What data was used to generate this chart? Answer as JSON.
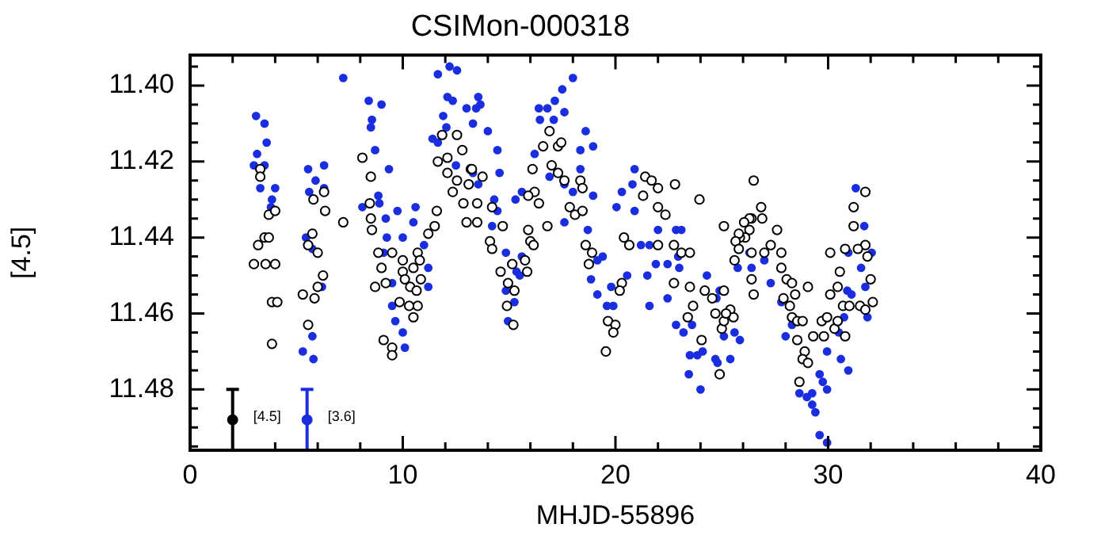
{
  "chart_data": {
    "type": "scatter",
    "title": "CSIMon-000318",
    "xlabel": "MHJD-55896",
    "ylabel": "[4.5]",
    "xlim": [
      0,
      40
    ],
    "xticks": [
      0,
      {
        "value": 2,
        "label": null
      },
      {
        "value": 4,
        "label": null
      },
      {
        "value": 6,
        "label": null
      },
      {
        "value": 8,
        "label": null
      },
      10,
      {
        "value": 12,
        "label": null
      },
      {
        "value": 14,
        "label": null
      },
      {
        "value": 16,
        "label": null
      },
      {
        "value": 18,
        "label": null
      },
      20,
      {
        "value": 22,
        "label": null
      },
      {
        "value": 24,
        "label": null
      },
      {
        "value": 26,
        "label": null
      },
      {
        "value": 28,
        "label": null
      },
      30,
      {
        "value": 32,
        "label": null
      },
      {
        "value": 34,
        "label": null
      },
      {
        "value": 36,
        "label": null
      },
      {
        "value": 38,
        "label": null
      },
      40
    ],
    "ylim": [
      11.496,
      11.392
    ],
    "yticks": [
      {
        "value": 11.395,
        "label": null
      },
      {
        "value": 11.4,
        "label": "11.40"
      },
      {
        "value": 11.405,
        "label": null
      },
      {
        "value": 11.41,
        "label": null
      },
      {
        "value": 11.415,
        "label": null
      },
      {
        "value": 11.42,
        "label": "11.42"
      },
      {
        "value": 11.425,
        "label": null
      },
      {
        "value": 11.43,
        "label": null
      },
      {
        "value": 11.435,
        "label": null
      },
      {
        "value": 11.44,
        "label": "11.44"
      },
      {
        "value": 11.445,
        "label": null
      },
      {
        "value": 11.45,
        "label": null
      },
      {
        "value": 11.455,
        "label": null
      },
      {
        "value": 11.46,
        "label": "11.46"
      },
      {
        "value": 11.465,
        "label": null
      },
      {
        "value": 11.47,
        "label": null
      },
      {
        "value": 11.475,
        "label": null
      },
      {
        "value": 11.48,
        "label": "11.48"
      },
      {
        "value": 11.485,
        "label": null
      },
      {
        "value": 11.49,
        "label": null
      },
      {
        "value": 11.495,
        "label": null
      }
    ],
    "grid": false,
    "legend": false,
    "marker": "circle",
    "series": [
      {
        "color": "#000000",
        "x": [
          3.3,
          3.3,
          3.7,
          4.0,
          3.2,
          3.5,
          3.7,
          3.0,
          3.55,
          4.0,
          3.85,
          4.1,
          3.85,
          5.8,
          6.3,
          6.35,
          5.75,
          5.55,
          6.0,
          6.25,
          6.0,
          5.3,
          5.85,
          5.55,
          7.2,
          8.1,
          8.5,
          8.45,
          8.5,
          8.55,
          8.85,
          9.0,
          9.5,
          10.0,
          10.5,
          10.7,
          10.8,
          11.2,
          11.5,
          11.6,
          8.7,
          9.2,
          10.0,
          10.1,
          10.35,
          10.65,
          10.85,
          10.7,
          10.3,
          9.85,
          10.5,
          9.5,
          9.1,
          9.5,
          11.85,
          12.55,
          12.8,
          12.1,
          11.65,
          12.1,
          12.55,
          13.2,
          12.35,
          12.85,
          13.0,
          16.9,
          16.6,
          17.3,
          17.45,
          16.1,
          17.0,
          17.3,
          17.6,
          18.35,
          18.45,
          16.2,
          15.9,
          16.4,
          17.85,
          18.1,
          18.45,
          16.8,
          15.9,
          16.0,
          16.15,
          13.25,
          13.75,
          13.1,
          13.5,
          13.5,
          14.2,
          14.7,
          14.1,
          14.2,
          15.15,
          15.75,
          14.6,
          15.85,
          14.95,
          14.9,
          15.25,
          15.2,
          18.6,
          18.9,
          18.75,
          20.4,
          20.65,
          20.3,
          20.2,
          19.65,
          20.0,
          19.9,
          19.55,
          21.4,
          21.7,
          22.0,
          21.3,
          22.0,
          22.35,
          22.8,
          23.95,
          22.0,
          22.75,
          23.1,
          23.5,
          22.75,
          23.5,
          24.2,
          24.55,
          24.7,
          25.4,
          25.55,
          23.65,
          23.4,
          24.05,
          24.9,
          25.0,
          26.3,
          26.4,
          26.1,
          25.85,
          25.6,
          25.1,
          26.5,
          26.85,
          26.9,
          26.3,
          26.05,
          25.8,
          25.65,
          25.8,
          26.4,
          27.0,
          27.3,
          27.6,
          27.8,
          27.8,
          28.05,
          28.3,
          28.45,
          29.05,
          27.9,
          28.2,
          28.3,
          28.55,
          28.8,
          28.55,
          28.9,
          28.8,
          29.05,
          28.65,
          29.3,
          29.7,
          29.95,
          29.8,
          30.3,
          30.45,
          30.8,
          30.1,
          30.45,
          30.55,
          30.7,
          31.0,
          31.5,
          31.75,
          32.1,
          32.0,
          31.85,
          31.75,
          31.4,
          30.8,
          31.2,
          31.2,
          31.75,
          30.1,
          26.5,
          26.4,
          25.1,
          25.1,
          25.2
        ],
        "values": [
          11.422,
          11.424,
          11.434,
          11.433,
          11.442,
          11.44,
          11.44,
          11.447,
          11.447,
          11.447,
          11.457,
          11.457,
          11.468,
          11.43,
          11.428,
          11.433,
          11.439,
          11.442,
          11.444,
          11.45,
          11.453,
          11.455,
          11.456,
          11.463,
          11.436,
          11.419,
          11.424,
          11.431,
          11.435,
          11.438,
          11.444,
          11.448,
          11.444,
          11.446,
          11.448,
          11.444,
          11.446,
          11.439,
          11.437,
          11.433,
          11.453,
          11.452,
          11.449,
          11.451,
          11.453,
          11.454,
          11.451,
          11.458,
          11.458,
          11.457,
          11.461,
          11.469,
          11.467,
          11.471,
          11.413,
          11.413,
          11.417,
          11.419,
          11.42,
          11.423,
          11.425,
          11.422,
          11.428,
          11.431,
          11.436,
          11.412,
          11.416,
          11.416,
          11.415,
          11.422,
          11.421,
          11.423,
          11.425,
          11.425,
          11.427,
          11.428,
          11.429,
          11.431,
          11.432,
          11.434,
          11.433,
          11.437,
          11.438,
          11.441,
          11.442,
          11.422,
          11.424,
          11.426,
          11.431,
          11.436,
          11.432,
          11.437,
          11.441,
          11.443,
          11.447,
          11.446,
          11.449,
          11.449,
          11.452,
          11.458,
          11.454,
          11.463,
          11.442,
          11.444,
          11.447,
          11.44,
          11.442,
          11.452,
          11.454,
          11.462,
          11.463,
          11.465,
          11.47,
          11.424,
          11.425,
          11.427,
          11.429,
          11.432,
          11.434,
          11.426,
          11.43,
          11.442,
          11.442,
          11.444,
          11.444,
          11.452,
          11.453,
          11.454,
          11.456,
          11.46,
          11.459,
          11.461,
          11.458,
          11.461,
          11.467,
          11.476,
          11.464,
          11.438,
          11.435,
          11.44,
          11.44,
          11.446,
          11.437,
          11.425,
          11.432,
          11.435,
          11.435,
          11.436,
          11.439,
          11.441,
          11.443,
          11.444,
          11.444,
          11.442,
          11.438,
          11.444,
          11.448,
          11.451,
          11.452,
          11.455,
          11.453,
          11.456,
          11.458,
          11.461,
          11.462,
          11.462,
          11.467,
          11.47,
          11.472,
          11.473,
          11.478,
          11.466,
          11.462,
          11.461,
          11.466,
          11.464,
          11.462,
          11.466,
          11.455,
          11.453,
          11.449,
          11.458,
          11.458,
          11.458,
          11.459,
          11.457,
          11.451,
          11.445,
          11.442,
          11.443,
          11.443,
          11.437,
          11.432,
          11.428,
          11.444,
          11.455,
          11.451,
          11.454,
          11.462,
          11.46
        ]
      },
      {
        "color": "#1a2ee0",
        "x": [
          3.1,
          3.5,
          3.6,
          3.15,
          3.0,
          3.5,
          3.3,
          4.0,
          3.85,
          3.8,
          5.55,
          6.3,
          5.9,
          5.6,
          6.3,
          5.45,
          5.75,
          6.2,
          5.75,
          5.3,
          5.8,
          7.2,
          8.4,
          9.0,
          8.55,
          8.5,
          8.7,
          9.35,
          8.45,
          8.85,
          8.1,
          8.9,
          9.2,
          9.75,
          10.6,
          10.5,
          9.25,
          10.0,
          9.1,
          11.0,
          9.5,
          11.2,
          9.5,
          9.65,
          10.0,
          10.1,
          11.2,
          11.65,
          12.2,
          12.1,
          12.35,
          13.0,
          11.9,
          12.05,
          11.4,
          11.65,
          12.5,
          13.15,
          13.3,
          12.55,
          13.55,
          13.45,
          13.65,
          13.3,
          14.0,
          14.45,
          14.55,
          13.55,
          14.3,
          15.3,
          15.6,
          16.2,
          16.4,
          16.8,
          17.15,
          17.5,
          18.0,
          16.45,
          17.1,
          17.6,
          18.6,
          18.95,
          18.35,
          18.35,
          16.9,
          17.6,
          18.0,
          18.95,
          17.6,
          18.7,
          15.6,
          14.85,
          15.1,
          15.35,
          15.5,
          14.85,
          15.25,
          14.95,
          14.45,
          14.2,
          19.15,
          19.4,
          18.85,
          19.15,
          19.9,
          19.8,
          20.55,
          20.8,
          20.9,
          20.3,
          20.05,
          20.9,
          21.2,
          21.6,
          22.0,
          21.9,
          21.5,
          21.6,
          22.45,
          23.1,
          22.85,
          22.95,
          22.45,
          19.6,
          23.0,
          22.85,
          23.2,
          23.6,
          23.5,
          23.85,
          24.1,
          23.45,
          24.0,
          24.7,
          24.8,
          25.4,
          25.1,
          25.6,
          25.85,
          24.9,
          25.75,
          26.4,
          26.3,
          24.75,
          24.3,
          27.0,
          27.3,
          27.8,
          28.3,
          28.0,
          31.3,
          31.7,
          30.95,
          32.05,
          31.55,
          31.75,
          30.9,
          31.1,
          31.85,
          30.75,
          30.5,
          30.6,
          30.95,
          29.95,
          29.95,
          29.6,
          29.75,
          29.25,
          29.0,
          28.65,
          29.25,
          29.4,
          29.6,
          29.95
        ],
        "values": [
          11.408,
          11.41,
          11.415,
          11.418,
          11.421,
          11.421,
          11.427,
          11.427,
          11.43,
          11.432,
          11.422,
          11.421,
          11.425,
          11.428,
          11.427,
          11.44,
          11.443,
          11.453,
          11.466,
          11.47,
          11.472,
          11.398,
          11.404,
          11.405,
          11.409,
          11.411,
          11.417,
          11.422,
          11.424,
          11.429,
          11.432,
          11.431,
          11.435,
          11.433,
          11.432,
          11.436,
          11.44,
          11.44,
          11.444,
          11.442,
          11.452,
          11.453,
          11.458,
          11.462,
          11.465,
          11.469,
          11.448,
          11.397,
          11.395,
          11.403,
          11.404,
          11.406,
          11.408,
          11.411,
          11.414,
          11.415,
          11.421,
          11.426,
          11.423,
          11.396,
          11.403,
          11.406,
          11.405,
          11.41,
          11.412,
          11.417,
          11.423,
          11.426,
          11.43,
          11.43,
          11.428,
          11.418,
          11.406,
          11.406,
          11.404,
          11.401,
          11.398,
          11.409,
          11.409,
          11.407,
          11.412,
          11.416,
          11.417,
          11.422,
          11.424,
          11.426,
          11.428,
          11.429,
          11.436,
          11.438,
          11.445,
          11.444,
          11.447,
          11.449,
          11.45,
          11.454,
          11.457,
          11.462,
          11.433,
          11.437,
          11.446,
          11.445,
          11.451,
          11.455,
          11.458,
          11.453,
          11.45,
          11.426,
          11.422,
          11.428,
          11.432,
          11.433,
          11.442,
          11.442,
          11.438,
          11.447,
          11.45,
          11.458,
          11.456,
          11.438,
          11.438,
          11.445,
          11.447,
          11.458,
          11.448,
          11.463,
          11.465,
          11.463,
          11.471,
          11.471,
          11.47,
          11.476,
          11.48,
          11.472,
          11.473,
          11.472,
          11.466,
          11.465,
          11.467,
          11.454,
          11.448,
          11.448,
          11.444,
          11.456,
          11.45,
          11.446,
          11.452,
          11.457,
          11.463,
          11.466,
          11.427,
          11.437,
          11.444,
          11.444,
          11.448,
          11.453,
          11.454,
          11.455,
          11.461,
          11.461,
          11.465,
          11.472,
          11.475,
          11.47,
          11.48,
          11.476,
          11.478,
          11.481,
          11.482,
          11.481,
          11.484,
          11.486,
          11.492,
          11.494
        ]
      },
      {
        "name": "[4.5]",
        "color": "#000000",
        "x": [
          2.0
        ],
        "values": [
          11.488
        ],
        "errors": [
          0.008
        ]
      },
      {
        "name": "[3.6]",
        "color": "#1a2ee0",
        "x": [
          5.5
        ],
        "values": [
          11.488
        ],
        "errors": [
          0.008
        ]
      }
    ]
  }
}
